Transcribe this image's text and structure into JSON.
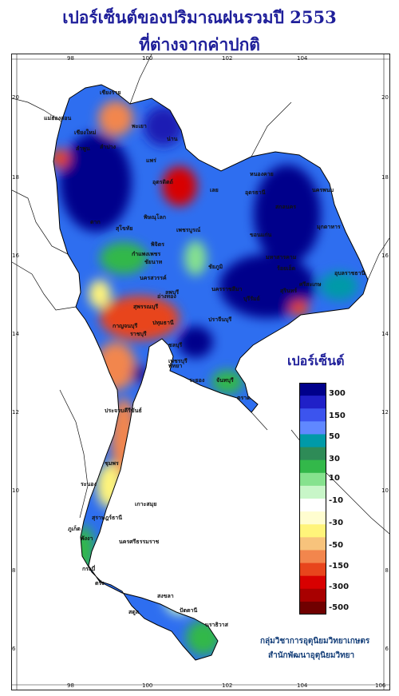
{
  "title_line1": "เปอร์เซ็นต์ของปริมาณฝนรวมปี 2553",
  "title_line2": "ที่ต่างจากค่าปกติ",
  "x_ticks_top": [
    "98",
    "100",
    "102",
    "104"
  ],
  "x_ticks_bottom": [
    "98",
    "100",
    "102",
    "104",
    "106"
  ],
  "y_ticks": [
    "20",
    "18",
    "16",
    "14",
    "12",
    "10",
    "8",
    "6"
  ],
  "legend": {
    "title": "เปอร์เซ็นต์",
    "colors": [
      "#00008b",
      "#2020c8",
      "#3c54ee",
      "#6088ff",
      "#009aa8",
      "#2e8b57",
      "#33b84a",
      "#86e28e",
      "#c8f6c8",
      "#ffffff",
      "#fffdd0",
      "#fff47a",
      "#f7c37c",
      "#f2864d",
      "#e8451c",
      "#d80000",
      "#a80000",
      "#700000"
    ],
    "labels": [
      "300",
      "150",
      "50",
      "30",
      "10",
      "-10",
      "-30",
      "-50",
      "-150",
      "-300",
      "-500"
    ]
  },
  "credit_line1": "กลุ่มวิชาการอุตุนิยมวิทยาเกษตร",
  "credit_line2": "สำนักพัฒนาอุตุนิยมวิทยา",
  "place_labels": [
    "เชียงราย",
    "แม่ฮ่องสอน",
    "พะเยา",
    "เชียงใหม่",
    "ลำปาง",
    "ลำพูน",
    "แพร่",
    "น่าน",
    "อุตรดิตถ์",
    "หนองคาย",
    "อุดรธานี",
    "นครพนม",
    "สกลนคร",
    "เลย",
    "มุกดาหาร",
    "พิษณุโลก",
    "ตาก",
    "สุโขทัย",
    "เพชรบูรณ์",
    "ขอนแก่น",
    "กำแพงเพชร",
    "พิจิตร",
    "นครสวรรค์",
    "ชัยภูมิ",
    "มหาสารคาม",
    "ร้อยเอ็ด",
    "อุบลราชธานี",
    "ลพบุรี",
    "นครราชสีมา",
    "ชัยนาท",
    "สุรินทร์",
    "บุรีรัมย์",
    "ศรีสะเกษ",
    "สุพรรณบุรี",
    "อ่างทอง",
    "กาญจนบุรี",
    "ปทุมธานี",
    "ราชบุรี",
    "ปราจีนบุรี",
    "ชลบุรี",
    "พัทยา",
    "ระยอง",
    "จันทบุรี",
    "ประจวบคีรีขันธ์",
    "ชุมพร",
    "ระนอง",
    "เกาะสมุย",
    "สุราษฎร์ธานี",
    "ภูเก็ต",
    "พังงา",
    "นครศรีธรรมราช",
    "กระบี่",
    "ตรัง",
    "สงขลา",
    "ปัตตานี",
    "นราธิวาส",
    "สตูล",
    "เพชรบุรี",
    "ตราด"
  ]
}
